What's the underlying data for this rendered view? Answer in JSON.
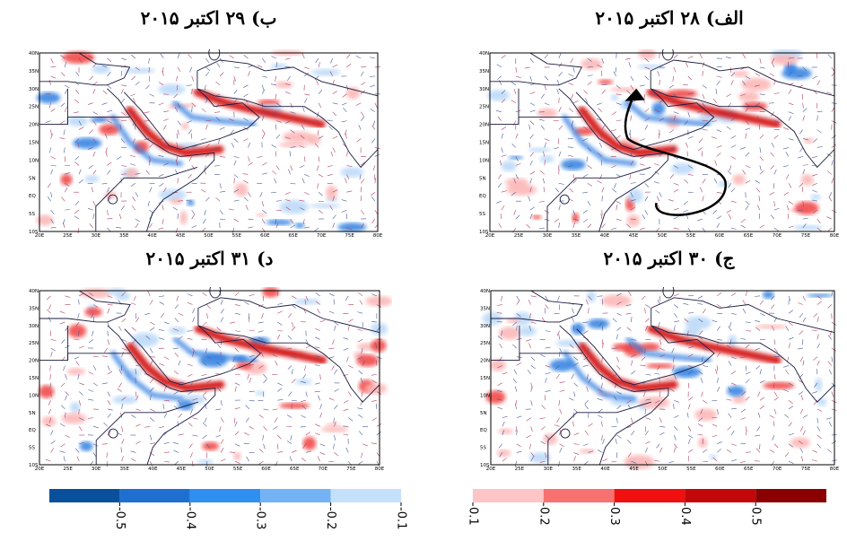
{
  "panels": [
    {
      "title": "الف) ۲۸ اکتبر ۲۰۱۵"
    },
    {
      "title": "ب) ۲۹ اکتبر ۲۰۱۵"
    },
    {
      "title": "ج) ۳۰ اکتبر ۲۰۱۵"
    },
    {
      "title": "د) ۳۱ اکتبر ۲۰۱۵"
    }
  ],
  "lat_labels": [
    "40N",
    "35N",
    "30N",
    "25N",
    "20N",
    "15N",
    "10N",
    "5N",
    "EQ",
    "5S",
    "10S"
  ],
  "lon_labels": [
    "20E",
    "25E",
    "30E",
    "35E",
    "40E",
    "45E",
    "50E",
    "55E",
    "60E",
    "65E",
    "70E",
    "75E",
    "80E"
  ],
  "colorbars": [
    {
      "colors": [
        "#08509b",
        "#1f6fd1",
        "#2f8ff0",
        "#73b2f5",
        "#c5e0fb"
      ],
      "ticks": [
        -0.5,
        -0.4,
        -0.3,
        -0.2,
        -0.1
      ]
    },
    {
      "colors": [
        "#fdc5c5",
        "#f87171",
        "#f01010",
        "#c20808",
        "#8b0000"
      ],
      "ticks": [
        0.1,
        0.2,
        0.3,
        0.4,
        0.5
      ]
    }
  ]
}
